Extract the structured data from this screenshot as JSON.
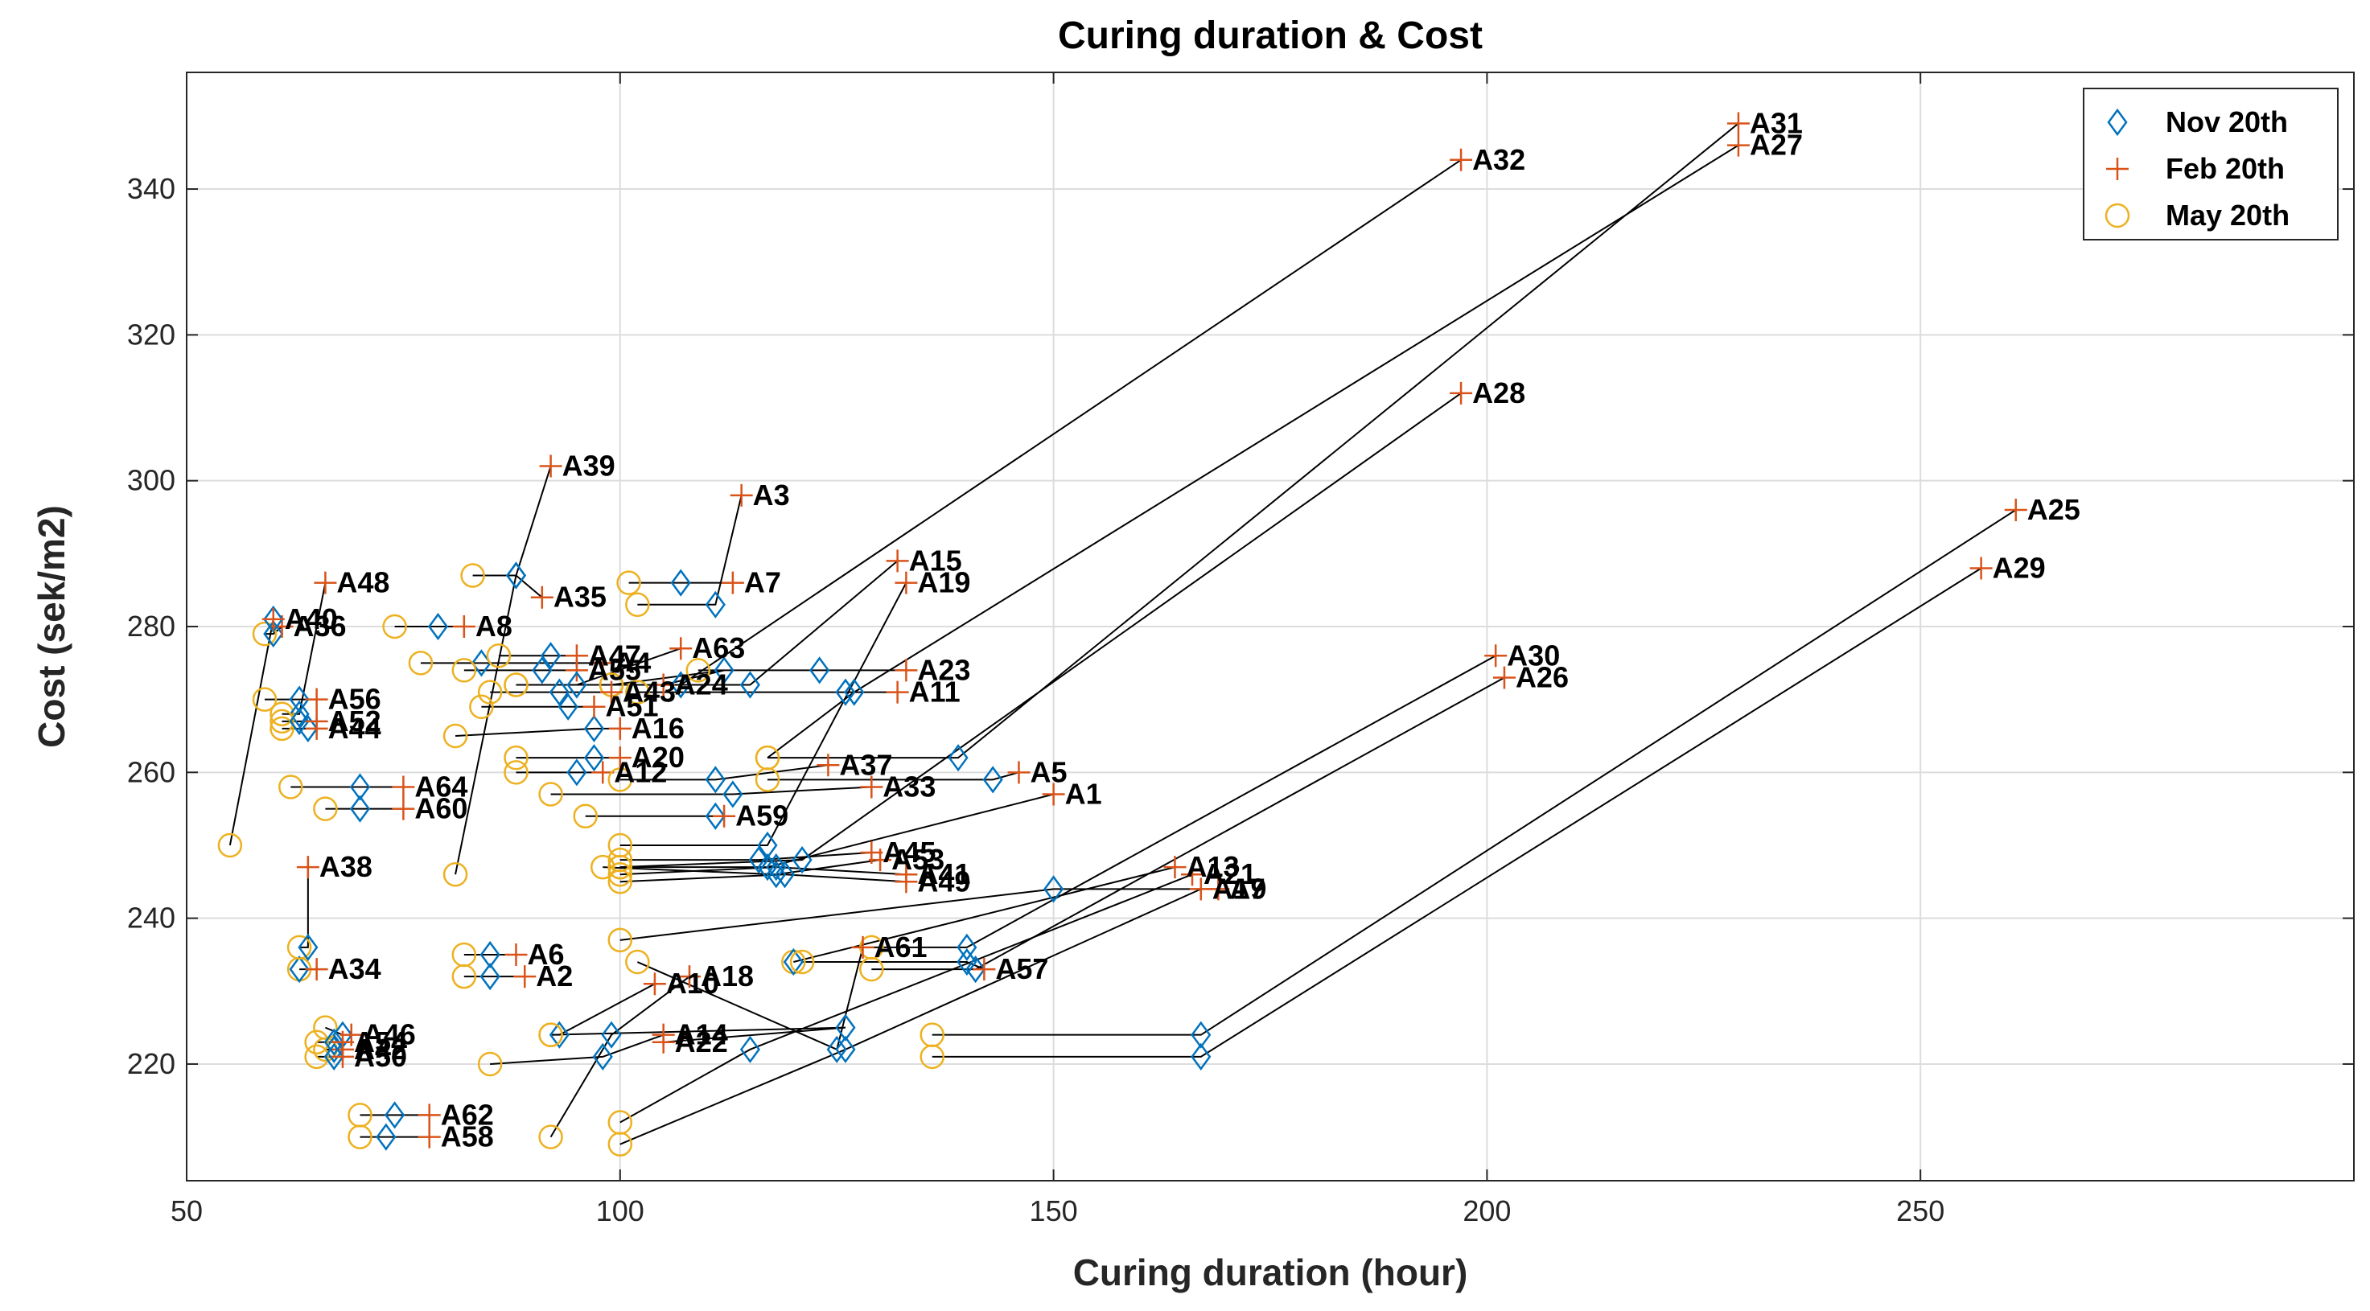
{
  "chart_data": {
    "type": "scatter",
    "title": "Curing duration & Cost",
    "xlabel": "Curing duration  (hour)",
    "ylabel": "Cost (sek/m2)",
    "xlim": [
      50,
      300
    ],
    "ylim": [
      204,
      356
    ],
    "xticks": [
      50,
      100,
      150,
      200,
      250
    ],
    "yticks": [
      220,
      240,
      260,
      280,
      300,
      320,
      340
    ],
    "grid": true,
    "legend_position": "top-right",
    "legend": [
      {
        "name": "Nov 20th",
        "marker": "diamond",
        "color": "#0072BD"
      },
      {
        "name": "Feb 20th",
        "marker": "plus",
        "color": "#D95319"
      },
      {
        "name": "May 20th",
        "marker": "circle",
        "color": "#EDB120"
      }
    ],
    "connector_color": "#000000",
    "cases": [
      {
        "label": "A1",
        "nov": [
          117,
          247
        ],
        "feb": [
          150,
          257
        ],
        "may": [
          100,
          247
        ]
      },
      {
        "label": "A2",
        "nov": [
          85,
          232
        ],
        "feb": [
          89,
          232
        ],
        "may": [
          82,
          232
        ]
      },
      {
        "label": "A3",
        "nov": [
          111,
          283
        ],
        "feb": [
          114,
          298
        ],
        "may": [
          102,
          283
        ]
      },
      {
        "label": "A4",
        "nov": [
          84,
          275
        ],
        "feb": [
          98,
          275
        ],
        "may": [
          77,
          275
        ]
      },
      {
        "label": "A5",
        "nov": [
          143,
          259
        ],
        "feb": [
          146,
          260
        ],
        "may": [
          117,
          259
        ]
      },
      {
        "label": "A6",
        "nov": [
          85,
          235
        ],
        "feb": [
          88,
          235
        ],
        "may": [
          82,
          235
        ]
      },
      {
        "label": "A7",
        "nov": [
          107,
          286
        ],
        "feb": [
          113,
          286
        ],
        "may": [
          101,
          286
        ]
      },
      {
        "label": "A8",
        "nov": [
          79,
          280
        ],
        "feb": [
          82,
          280
        ],
        "may": [
          74,
          280
        ]
      },
      {
        "label": "A9",
        "nov": [
          150,
          244
        ],
        "feb": [
          169,
          244
        ],
        "may": [
          100,
          237
        ]
      },
      {
        "label": "A10",
        "nov": [
          93,
          224
        ],
        "feb": [
          104,
          231
        ],
        "may": [
          92,
          224
        ]
      },
      {
        "label": "A11",
        "nov": [
          126,
          271
        ],
        "feb": [
          132,
          271
        ],
        "may": [
          102,
          271
        ]
      },
      {
        "label": "A12",
        "nov": [
          95,
          260
        ],
        "feb": [
          98,
          260
        ],
        "may": [
          88,
          260
        ]
      },
      {
        "label": "A13",
        "nov": [
          120,
          234
        ],
        "feb": [
          164,
          247
        ],
        "may": [
          120,
          234
        ]
      },
      {
        "label": "A14",
        "nov": [
          98,
          221
        ],
        "feb": [
          105,
          224
        ],
        "may": [
          85,
          220
        ]
      },
      {
        "label": "A15",
        "nov": [
          115,
          272
        ],
        "feb": [
          132,
          289
        ],
        "may": [
          88,
          272
        ]
      },
      {
        "label": "A16",
        "nov": [
          97,
          266
        ],
        "feb": [
          100,
          266
        ],
        "may": [
          81,
          265
        ]
      },
      {
        "label": "A17",
        "nov": [
          126,
          222
        ],
        "feb": [
          167,
          244
        ],
        "may": [
          100,
          209
        ]
      },
      {
        "label": "A18",
        "nov": [
          99,
          224
        ],
        "feb": [
          108,
          232
        ],
        "may": [
          92,
          210
        ]
      },
      {
        "label": "A19",
        "nov": [
          117,
          250
        ],
        "feb": [
          133,
          286
        ],
        "may": [
          100,
          250
        ]
      },
      {
        "label": "A20",
        "nov": [
          97,
          262
        ],
        "feb": [
          100,
          262
        ],
        "may": [
          88,
          262
        ]
      },
      {
        "label": "A21",
        "nov": [
          115,
          222
        ],
        "feb": [
          166,
          246
        ],
        "may": [
          100,
          212
        ]
      },
      {
        "label": "A22",
        "nov": [
          126,
          225
        ],
        "feb": [
          105,
          223
        ],
        "may": [
          92,
          224
        ]
      },
      {
        "label": "A23",
        "nov": [
          123,
          274
        ],
        "feb": [
          133,
          274
        ],
        "may": [
          109,
          274
        ]
      },
      {
        "label": "A24",
        "nov": [
          112,
          274
        ],
        "feb": [
          105,
          272
        ],
        "may": [
          99,
          272
        ]
      },
      {
        "label": "A25",
        "nov": [
          167,
          224
        ],
        "feb": [
          261,
          296
        ],
        "may": [
          136,
          224
        ]
      },
      {
        "label": "A26",
        "nov": [
          141,
          233
        ],
        "feb": [
          202,
          273
        ],
        "may": [
          129,
          233
        ]
      },
      {
        "label": "A27",
        "nov": [
          127,
          271
        ],
        "feb": [
          229,
          346
        ],
        "may": [
          117,
          262
        ]
      },
      {
        "label": "A28",
        "nov": [
          121,
          248
        ],
        "feb": [
          197,
          312
        ],
        "may": [
          100,
          247
        ]
      },
      {
        "label": "A29",
        "nov": [
          167,
          221
        ],
        "feb": [
          257,
          288
        ],
        "may": [
          136,
          221
        ]
      },
      {
        "label": "A30",
        "nov": [
          140,
          236
        ],
        "feb": [
          201,
          276
        ],
        "may": [
          129,
          236
        ]
      },
      {
        "label": "A31",
        "nov": [
          139,
          262
        ],
        "feb": [
          229,
          349
        ],
        "may": [
          117,
          262
        ]
      },
      {
        "label": "A32",
        "nov": [
          107,
          272
        ],
        "feb": [
          197,
          344
        ],
        "may": [
          99,
          272
        ]
      },
      {
        "label": "A33",
        "nov": [
          113,
          257
        ],
        "feb": [
          129,
          258
        ],
        "may": [
          92,
          257
        ]
      },
      {
        "label": "A34",
        "nov": [
          63,
          233
        ],
        "feb": [
          65,
          233
        ],
        "may": [
          63,
          233
        ]
      },
      {
        "label": "A35",
        "nov": [
          88,
          287
        ],
        "feb": [
          91,
          284
        ],
        "may": [
          83,
          287
        ]
      },
      {
        "label": "A36",
        "nov": [
          60,
          279
        ],
        "feb": [
          61,
          280
        ],
        "may": [
          59,
          279
        ]
      },
      {
        "label": "A37",
        "nov": [
          111,
          259
        ],
        "feb": [
          124,
          261
        ],
        "may": [
          100,
          259
        ]
      },
      {
        "label": "A38",
        "nov": [
          64,
          236
        ],
        "feb": [
          64,
          247
        ],
        "may": [
          63,
          236
        ]
      },
      {
        "label": "A39",
        "nov": [
          88,
          287
        ],
        "feb": [
          92,
          302
        ],
        "may": [
          81,
          246
        ]
      },
      {
        "label": "A40",
        "nov": [
          60,
          281
        ],
        "feb": [
          60,
          281
        ],
        "may": [
          55,
          250
        ]
      },
      {
        "label": "A41",
        "nov": [
          118,
          247
        ],
        "feb": [
          133,
          246
        ],
        "may": [
          100,
          246
        ]
      },
      {
        "label": "A42",
        "nov": [
          67,
          222
        ],
        "feb": [
          68,
          222
        ],
        "may": [
          66,
          222
        ]
      },
      {
        "label": "A43",
        "nov": [
          93,
          271
        ],
        "feb": [
          99,
          271
        ],
        "may": [
          85,
          271
        ]
      },
      {
        "label": "A44",
        "nov": [
          64,
          266
        ],
        "feb": [
          65,
          266
        ],
        "may": [
          61,
          266
        ]
      },
      {
        "label": "A45",
        "nov": [
          116,
          248
        ],
        "feb": [
          129,
          249
        ],
        "may": [
          100,
          248
        ]
      },
      {
        "label": "A46",
        "nov": [
          68,
          224
        ],
        "feb": [
          69,
          224
        ],
        "may": [
          66,
          225
        ]
      },
      {
        "label": "A47",
        "nov": [
          92,
          276
        ],
        "feb": [
          95,
          276
        ],
        "may": [
          86,
          276
        ]
      },
      {
        "label": "A48",
        "nov": [
          63,
          268
        ],
        "feb": [
          66,
          286
        ],
        "may": [
          61,
          268
        ]
      },
      {
        "label": "A49",
        "nov": [
          119,
          246
        ],
        "feb": [
          133,
          245
        ],
        "may": [
          100,
          245
        ]
      },
      {
        "label": "A50",
        "nov": [
          67,
          221
        ],
        "feb": [
          68,
          221
        ],
        "may": [
          65,
          221
        ]
      },
      {
        "label": "A51",
        "nov": [
          94,
          269
        ],
        "feb": [
          97,
          269
        ],
        "may": [
          84,
          269
        ]
      },
      {
        "label": "A52",
        "nov": [
          63,
          267
        ],
        "feb": [
          65,
          267
        ],
        "may": [
          61,
          267
        ]
      },
      {
        "label": "A53",
        "nov": [
          118,
          246
        ],
        "feb": [
          130,
          248
        ],
        "may": [
          98,
          247
        ]
      },
      {
        "label": "A54",
        "nov": [
          67,
          223
        ],
        "feb": [
          68,
          223
        ],
        "may": [
          65,
          223
        ]
      },
      {
        "label": "A55",
        "nov": [
          91,
          274
        ],
        "feb": [
          95,
          274
        ],
        "may": [
          82,
          274
        ]
      },
      {
        "label": "A56",
        "nov": [
          63,
          270
        ],
        "feb": [
          65,
          270
        ],
        "may": [
          59,
          270
        ]
      },
      {
        "label": "A57",
        "nov": [
          140,
          234
        ],
        "feb": [
          142,
          233
        ],
        "may": [
          121,
          234
        ]
      },
      {
        "label": "A58",
        "nov": [
          73,
          210
        ],
        "feb": [
          78,
          210
        ],
        "may": [
          70,
          210
        ]
      },
      {
        "label": "A59",
        "nov": [
          111,
          254
        ],
        "feb": [
          112,
          254
        ],
        "may": [
          96,
          254
        ]
      },
      {
        "label": "A60",
        "nov": [
          70,
          255
        ],
        "feb": [
          75,
          255
        ],
        "may": [
          66,
          255
        ]
      },
      {
        "label": "A61",
        "nov": [
          125,
          222
        ],
        "feb": [
          128,
          236
        ],
        "may": [
          102,
          234
        ]
      },
      {
        "label": "A62",
        "nov": [
          74,
          213
        ],
        "feb": [
          78,
          213
        ],
        "may": [
          70,
          213
        ]
      },
      {
        "label": "A63",
        "nov": [
          95,
          272
        ],
        "feb": [
          107,
          277
        ],
        "may": [
          88,
          272
        ]
      },
      {
        "label": "A64",
        "nov": [
          70,
          258
        ],
        "feb": [
          75,
          258
        ],
        "may": [
          62,
          258
        ]
      }
    ]
  }
}
